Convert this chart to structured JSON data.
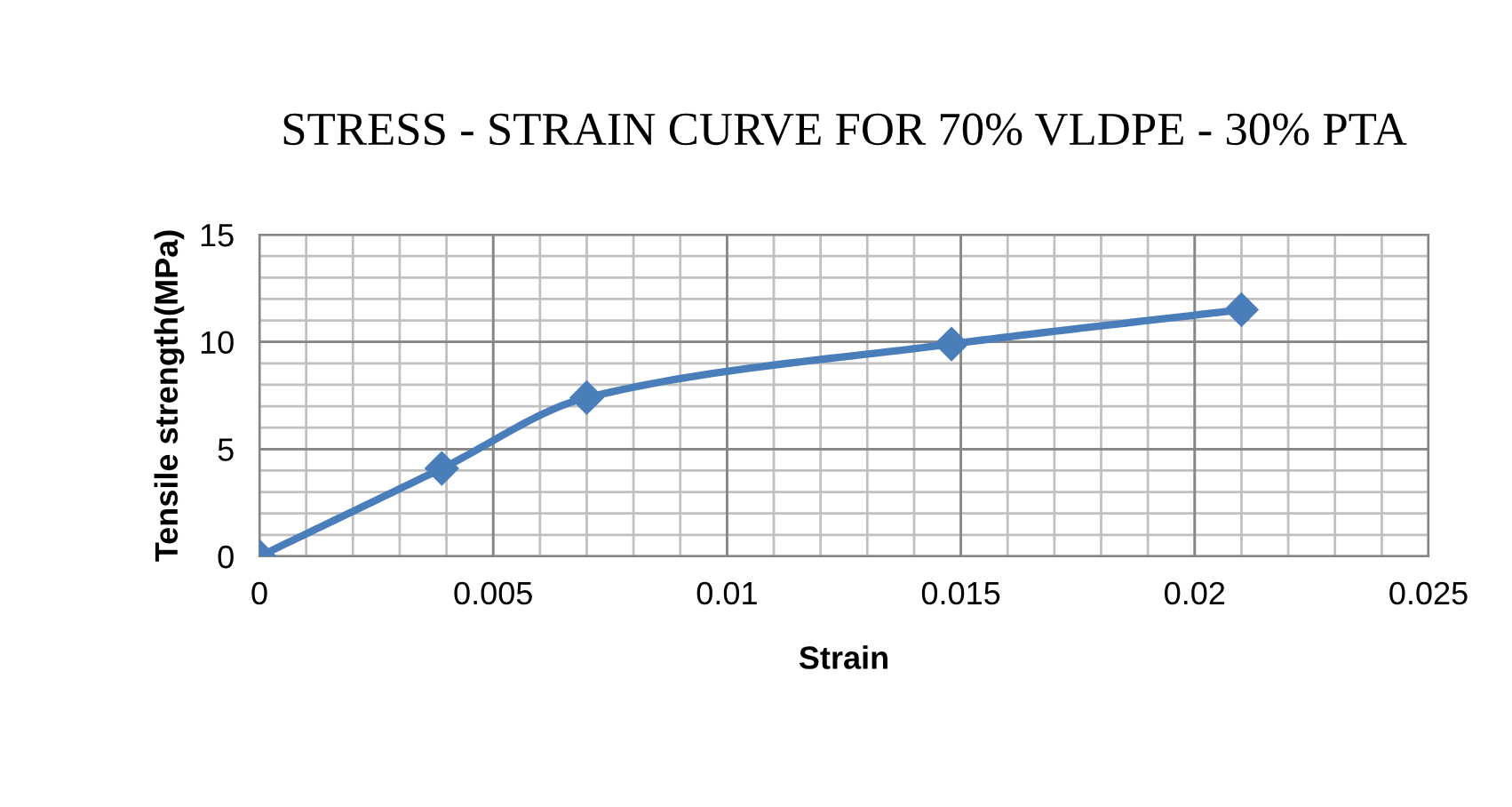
{
  "chart_data": {
    "type": "line",
    "title": "STRESS - STRAIN CURVE FOR 70% VLDPE - 30% PTA",
    "xlabel": "Strain",
    "ylabel": "Tensile strength(MPa)",
    "x": [
      0,
      0.0039,
      0.007,
      0.0148,
      0.021
    ],
    "series": [
      {
        "color": "#4a7ebb",
        "values": [
          0,
          4.1,
          7.4,
          9.9,
          11.5
        ]
      }
    ],
    "xlim": [
      0,
      0.025
    ],
    "xticks": [
      0,
      0.005,
      0.01,
      0.015,
      0.02,
      0.025
    ],
    "ylim": [
      0,
      15
    ],
    "yticks": [
      0,
      5,
      10,
      15
    ],
    "grid": true,
    "marker": "diamond",
    "line_style": "solid",
    "legend": false
  }
}
